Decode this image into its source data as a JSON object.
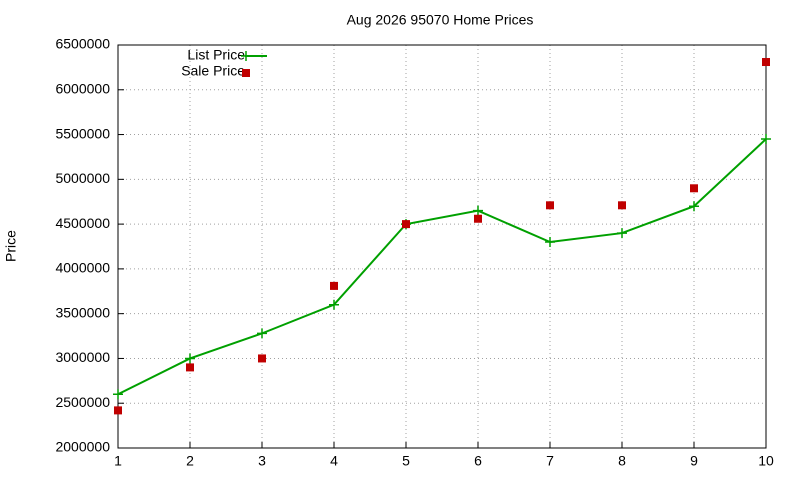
{
  "chart_data": {
    "type": "line",
    "title": "Aug 2026 95070 Home Prices",
    "y_label": "Price",
    "x": [
      1,
      2,
      3,
      4,
      5,
      6,
      7,
      8,
      9,
      10
    ],
    "series": [
      {
        "name": "List Price",
        "color": "#00a000",
        "style": "linespoints",
        "values": [
          2600000,
          3000000,
          3280000,
          3600000,
          4500000,
          4650000,
          4300000,
          4400000,
          4700000,
          5450000
        ]
      },
      {
        "name": "Sale Price",
        "color": "#c00000",
        "style": "points",
        "values": [
          2420000,
          2900000,
          3000000,
          3810000,
          4500000,
          4560000,
          4710000,
          4710000,
          4900000,
          6310000
        ]
      }
    ],
    "xlim": [
      1,
      10
    ],
    "xticks": [
      1,
      2,
      3,
      4,
      5,
      6,
      7,
      8,
      9,
      10
    ],
    "ylim": [
      2000000,
      6500000
    ],
    "yticks": [
      2000000,
      2500000,
      3000000,
      3500000,
      4000000,
      4500000,
      5000000,
      5500000,
      6000000,
      6500000
    ],
    "grid": true,
    "legend": "top left"
  }
}
